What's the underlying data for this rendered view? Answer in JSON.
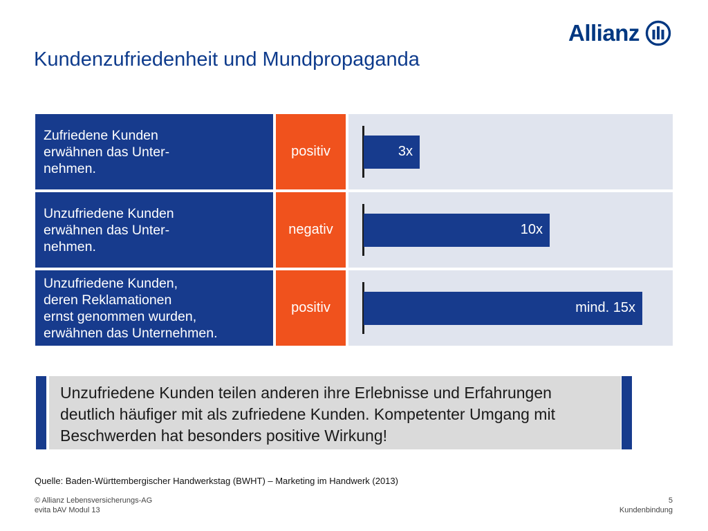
{
  "brand": {
    "name": "Allianz",
    "color": "#003781"
  },
  "title": "Kundenzufriedenheit und Mundpropaganda",
  "rows": [
    {
      "description": "Zufriedene Kunden\nerwähnen das Unter-\nnehmen.",
      "sentiment": "positiv",
      "bar_label": "3x"
    },
    {
      "description": "Unzufriedene Kunden\nerwähnen das Unter-\nnehmen.",
      "sentiment": "negativ",
      "bar_label": "10x"
    },
    {
      "description": "Unzufriedene Kunden,\nderen Reklamationen\nernst genommen wurden,\nerwähnen das Unternehmen.",
      "sentiment": "positiv",
      "bar_label": "mind. 15x"
    }
  ],
  "chart_data": {
    "type": "bar",
    "orientation": "horizontal",
    "categories": [
      "Zufriedene Kunden erwähnen das Unternehmen.",
      "Unzufriedene Kunden erwähnen das Unternehmen.",
      "Unzufriedene Kunden, deren Reklamationen ernst genommen wurden, erwähnen das Unternehmen."
    ],
    "values": [
      3,
      10,
      15
    ],
    "data_labels": [
      "3x",
      "10x",
      "mind. 15x"
    ],
    "title": "",
    "xlabel": "",
    "ylabel": "",
    "xlim": [
      0,
      15
    ],
    "grid": false
  },
  "note": "Unzufriedene Kunden teilen anderen ihre Erlebnisse und Erfahrungen\ndeutlich häufiger mit als zufriedene Kunden. Kompetenter Umgang mit\nBeschwerden hat besonders positive Wirkung!",
  "source": "Quelle: Baden-Württembergischer Handwerkstag (BWHT) – Marketing im Handwerk (2013)",
  "footer": {
    "copyright": "© Allianz Lebensversicherungs-AG",
    "module": "evita bAV Modul 13",
    "page_number": "5",
    "section": "Kundenbindung"
  },
  "colors": {
    "primary_blue": "#173b8d",
    "accent_orange": "#f0521d",
    "panel_grey": "#e0e4ee",
    "note_grey": "#dadada"
  }
}
